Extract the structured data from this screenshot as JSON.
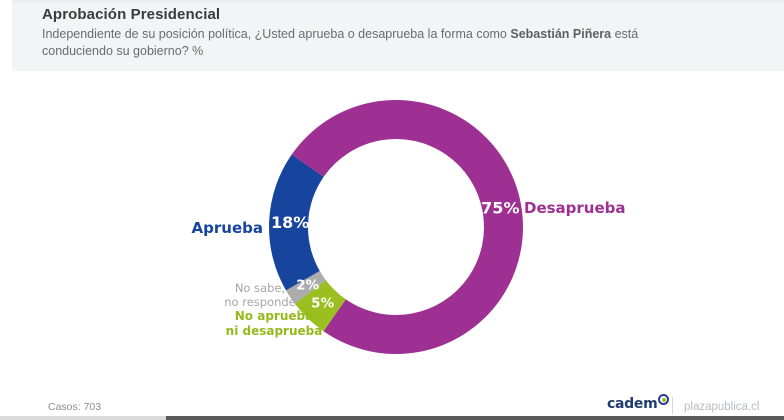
{
  "header": {
    "title": "Aprobación Presidencial",
    "subtitle_part1": "Independiente de su posición política, ¿Usted aprueba o desaprueba la forma como ",
    "subtitle_bold": "Sebastián Piñera",
    "subtitle_part2": " está conduciendo su gobierno? %"
  },
  "chart_data": {
    "type": "pie",
    "variant": "donut",
    "title": "Aprobación Presidencial",
    "units": "%",
    "start_angle_deg": 240,
    "direction": "clockwise",
    "segments": [
      {
        "label": "Aprueba",
        "value": 18,
        "percent_label": "18%",
        "color": "#17459E",
        "label_lines": [
          "Aprueba"
        ]
      },
      {
        "label": "Desaprueba",
        "value": 75,
        "percent_label": "75%",
        "color": "#9D3092",
        "label_lines": [
          "Desaprueba"
        ]
      },
      {
        "label": "No aprueba ni desaprueba",
        "value": 5,
        "percent_label": "5%",
        "color": "#9BBF21",
        "label_lines": [
          "No aprueba",
          "ni desaprueba"
        ]
      },
      {
        "label": "No sabe, no responde",
        "value": 2,
        "percent_label": "2%",
        "color": "#ACACAC",
        "label_lines": [
          "No sabe,",
          "no responde"
        ]
      }
    ]
  },
  "footer": {
    "cases_label": "Casos: 703",
    "brand": "cadem",
    "site": "plazapublica.cl"
  }
}
